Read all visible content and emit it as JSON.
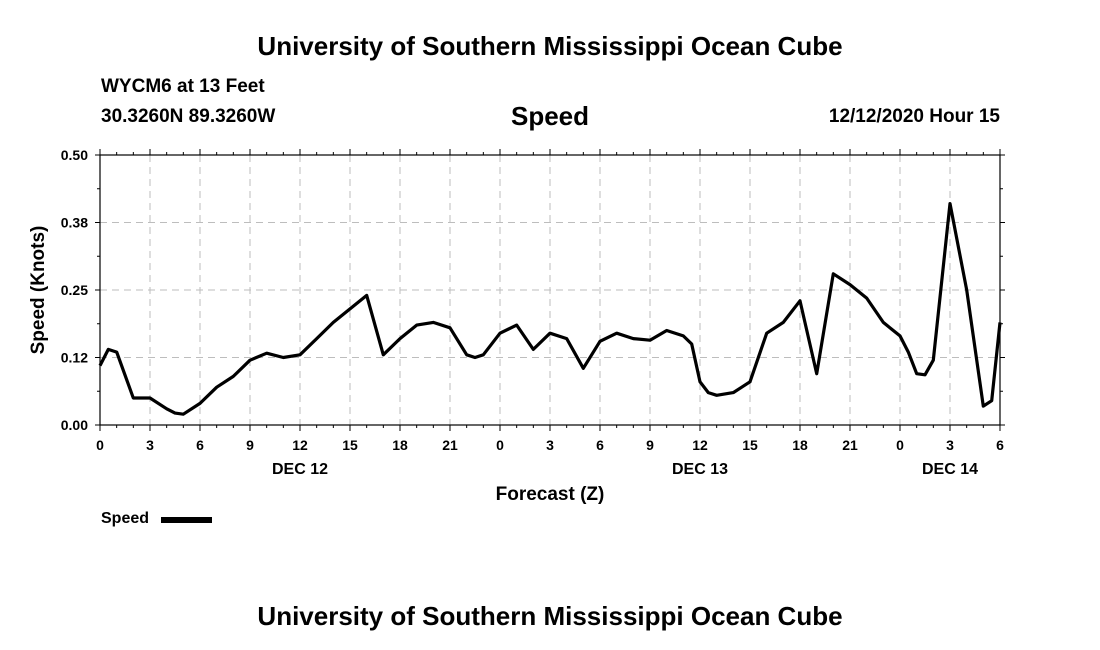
{
  "header": {
    "title_top": "University of Southern Mississippi Ocean Cube",
    "title_bottom": "University of Southern Mississippi Ocean Cube",
    "station": "WYCM6 at 13 Feet",
    "coords": "30.3260N 89.3260W",
    "variable": "Speed",
    "timestamp": "12/12/2020 Hour 15"
  },
  "legend": {
    "label": "Speed"
  },
  "chart_data": {
    "type": "line",
    "title": "Speed",
    "xlabel": "Forecast (Z)",
    "ylabel": "Speed (Knots)",
    "xlim": [
      0,
      54
    ],
    "ylim": [
      0,
      0.5
    ],
    "yticks": [
      "0.00",
      "0.12",
      "0.25",
      "0.38",
      "0.50"
    ],
    "ytick_values": [
      0,
      0.125,
      0.25,
      0.375,
      0.5
    ],
    "xticks": [
      "0",
      "3",
      "6",
      "9",
      "12",
      "15",
      "18",
      "21",
      "0",
      "3",
      "6",
      "9",
      "12",
      "15",
      "18",
      "21",
      "0",
      "3",
      "6"
    ],
    "xtick_values": [
      0,
      3,
      6,
      9,
      12,
      15,
      18,
      21,
      24,
      27,
      30,
      33,
      36,
      39,
      42,
      45,
      48,
      51,
      54
    ],
    "day_labels": [
      {
        "label": "DEC 12",
        "x": 12
      },
      {
        "label": "DEC 13",
        "x": 36
      },
      {
        "label": "DEC 14",
        "x": 51
      }
    ],
    "grid": true,
    "series": [
      {
        "name": "Speed",
        "x": [
          0,
          0.5,
          1,
          2,
          3,
          4,
          4.5,
          5,
          6,
          7,
          8,
          9,
          10,
          11,
          12,
          13,
          14,
          15,
          16,
          17,
          18,
          19,
          20,
          21,
          22,
          22.5,
          23,
          24,
          25,
          26,
          27,
          28,
          29,
          30,
          31,
          32,
          33,
          34,
          35,
          35.5,
          36,
          36.5,
          37,
          38,
          38.5,
          39,
          40,
          41,
          42,
          43,
          44,
          45,
          46,
          47,
          48,
          48.5,
          49,
          49.5,
          50,
          51,
          52,
          53,
          53.5,
          54
        ],
        "values": [
          0.11,
          0.14,
          0.135,
          0.05,
          0.05,
          0.03,
          0.022,
          0.02,
          0.04,
          0.07,
          0.09,
          0.12,
          0.133,
          0.125,
          0.13,
          0.16,
          0.19,
          0.215,
          0.24,
          0.13,
          0.16,
          0.185,
          0.19,
          0.18,
          0.13,
          0.125,
          0.13,
          0.17,
          0.185,
          0.14,
          0.17,
          0.16,
          0.105,
          0.155,
          0.17,
          0.16,
          0.157,
          0.175,
          0.165,
          0.15,
          0.08,
          0.06,
          0.055,
          0.06,
          0.07,
          0.08,
          0.17,
          0.19,
          0.23,
          0.095,
          0.28,
          0.26,
          0.235,
          0.19,
          0.165,
          0.135,
          0.095,
          0.093,
          0.12,
          0.41,
          0.25,
          0.035,
          0.045,
          0.19
        ]
      }
    ]
  }
}
